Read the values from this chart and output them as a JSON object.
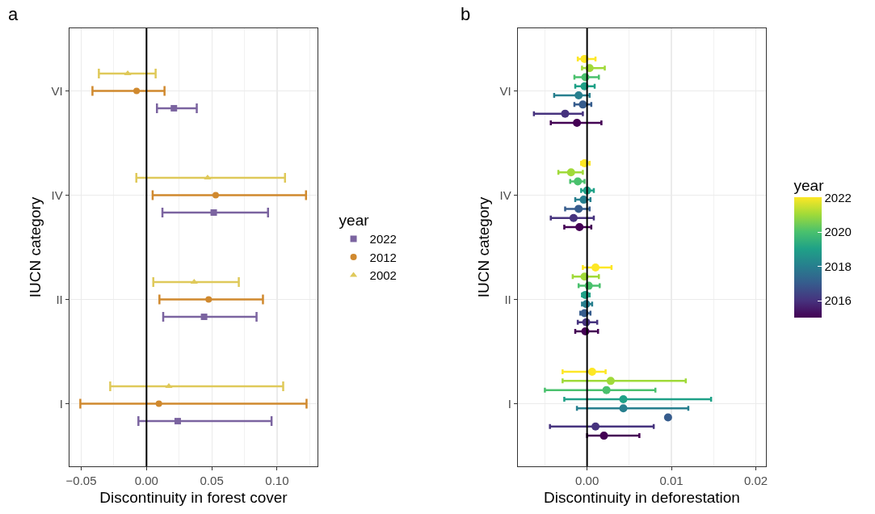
{
  "chart_data": [
    {
      "type": "scatter",
      "title": "a",
      "orientation": "horizontal",
      "xlabel": "Discontinuity in forest cover",
      "ylabel": "IUCN category",
      "categories": [
        "VI",
        "IV",
        "II",
        "I"
      ],
      "xlim": [
        -0.059,
        0.131
      ],
      "xticks": [
        {
          "value": -0.05,
          "label": "−0.05"
        },
        {
          "value": -0.025,
          "label": null
        },
        {
          "value": 0,
          "label": "0.00"
        },
        {
          "value": 0.025,
          "label": null
        },
        0.05,
        {
          "value": 0.075,
          "label": null
        },
        {
          "value": 0.1,
          "label": "0.10"
        },
        {
          "value": 0.125,
          "label": null
        }
      ],
      "grid": true,
      "legend": "right",
      "legend_title": "year",
      "ref_lines": [
        {
          "axis": "x",
          "value": 0,
          "color": "#000000"
        }
      ],
      "series": [
        {
          "name": "2022",
          "color": "#7b64a0",
          "marker": "square",
          "values": [
            0.021,
            0.0515,
            0.0441,
            0.0239
          ],
          "errors": [
            [
              0.008,
              0.0385
            ],
            [
              0.0122,
              0.0931
            ],
            [
              0.0128,
              0.0843
            ],
            [
              -0.0062,
              0.0958
            ]
          ]
        },
        {
          "name": "2012",
          "color": "#d0892e",
          "marker": "circle",
          "values": [
            -0.0076,
            0.053,
            0.0476,
            0.0095
          ],
          "errors": [
            [
              -0.0414,
              0.0138
            ],
            [
              0.0047,
              0.1222
            ],
            [
              0.0099,
              0.0892
            ],
            [
              -0.0507,
              0.1226
            ]
          ]
        },
        {
          "name": "2002",
          "color": "#dfc95a",
          "marker": "triangle",
          "values": [
            -0.0144,
            0.0468,
            0.0365,
            0.0171
          ],
          "errors": [
            [
              -0.0365,
              0.007
            ],
            [
              -0.0078,
              0.1061
            ],
            [
              0.0052,
              0.0707
            ],
            [
              -0.0278,
              0.1047
            ]
          ]
        }
      ]
    },
    {
      "type": "scatter",
      "title": "b",
      "orientation": "horizontal",
      "xlabel": "Discontinuity in deforestation",
      "ylabel": "IUCN category",
      "categories": [
        "VI",
        "IV",
        "II",
        "I"
      ],
      "xlim": [
        -0.0082,
        0.0212
      ],
      "xticks": [
        {
          "value": -0.005,
          "label": null
        },
        {
          "value": 0,
          "label": "0.00"
        },
        {
          "value": 0.005,
          "label": null
        },
        0.01,
        {
          "value": 0.015,
          "label": null
        },
        0.02
      ],
      "grid": true,
      "marker": "circle",
      "clabel": "year",
      "clim": [
        2015,
        2022
      ],
      "cticks": [
        2016,
        2018,
        2020,
        2022
      ],
      "ref_lines": [
        {
          "axis": "x",
          "value": 0,
          "color": "#000000"
        }
      ],
      "series": [
        {
          "color": "#440154",
          "values": [
            -0.0012,
            -0.0009,
            -0.0002,
            0.002
          ],
          "errors": [
            [
              -0.0043,
              0.0017
            ],
            [
              -0.0027,
              0.0005
            ],
            [
              -0.0014,
              0.0013
            ],
            [
              0.0,
              0.0062
            ]
          ]
        },
        {
          "color": "#46337e",
          "values": [
            -0.0026,
            -0.0016,
            -0.0001,
            0.001
          ],
          "errors": [
            [
              -0.0063,
              -0.0005
            ],
            [
              -0.0043,
              0.0008
            ],
            [
              -0.0011,
              0.0012
            ],
            [
              -0.0044,
              0.0079
            ]
          ]
        },
        {
          "color": "#365c8d",
          "values": [
            -0.0005,
            -0.001,
            -0.0003,
            0.0096
          ],
          "errors": [
            [
              -0.0015,
              0.0005
            ],
            [
              -0.0026,
              0.0003
            ],
            [
              -0.0008,
              0.0004
            ],
            null
          ]
        },
        {
          "color": "#277f8e",
          "values": [
            -0.001,
            -0.0004,
            -0.0001,
            0.0043
          ],
          "errors": [
            [
              -0.0039,
              0.0003
            ],
            [
              -0.0014,
              0.0004
            ],
            [
              -0.0006,
              0.0006
            ],
            [
              -0.0012,
              0.012
            ]
          ]
        },
        {
          "color": "#1fa187",
          "values": [
            -0.0003,
            0.0,
            -0.0002,
            0.0043
          ],
          "errors": [
            [
              -0.0014,
              0.0009
            ],
            [
              -0.0007,
              0.0008
            ],
            [
              -0.0006,
              0.0003
            ],
            [
              -0.0027,
              0.0147
            ]
          ]
        },
        {
          "color": "#4ac16d",
          "values": [
            -0.0002,
            -0.0011,
            0.0002,
            0.0023
          ],
          "errors": [
            [
              -0.0015,
              0.0014
            ],
            [
              -0.002,
              -0.0003
            ],
            [
              -0.001,
              0.0015
            ],
            [
              -0.005,
              0.0081
            ]
          ]
        },
        {
          "color": "#a0da39",
          "values": [
            0.0003,
            -0.0019,
            -0.0003,
            0.0028
          ],
          "errors": [
            [
              -0.0006,
              0.0021
            ],
            [
              -0.0034,
              -0.0005
            ],
            [
              -0.0017,
              0.0014
            ],
            [
              -0.0029,
              0.0117
            ]
          ]
        },
        {
          "color": "#fde725",
          "values": [
            -0.0003,
            -0.0003,
            0.001,
            0.0006
          ],
          "errors": [
            [
              -0.0011,
              0.001
            ],
            [
              -0.0007,
              0.0003
            ],
            [
              -0.0005,
              0.0029
            ],
            [
              -0.0029,
              0.0022
            ]
          ]
        }
      ]
    }
  ]
}
